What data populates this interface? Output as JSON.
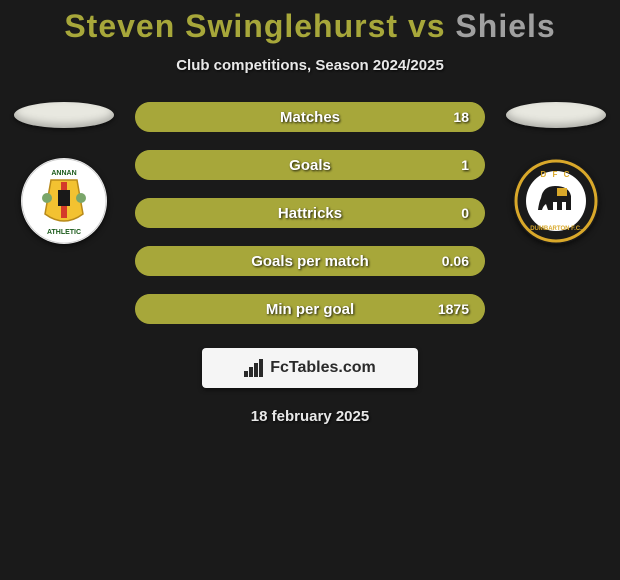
{
  "title": {
    "player1": "Steven Swinglehurst",
    "vs": " vs ",
    "player2": "Shiels",
    "player1_color": "#a7a73a",
    "player2_color": "#a0a0a0"
  },
  "subtitle": "Club competitions, Season 2024/2025",
  "left": {
    "oval_color": "#e8e8e0",
    "badge": {
      "bg": "#ffffff",
      "inner_bg": "#f3c231",
      "stripe": "#d43a2a",
      "center": "#191919",
      "text_color": "#1a5a1a",
      "top_text": "ANNAN",
      "bottom_text": "ATHLETIC"
    }
  },
  "right": {
    "oval_color": "#e8e8e0",
    "badge": {
      "bg": "#1a1a1a",
      "ring": "#d9a82a",
      "inner": "#ffffff",
      "accent": "#d9a82a",
      "top_text": "D F C"
    }
  },
  "stats": [
    {
      "label": "Matches",
      "value": "18",
      "fill_pct": 100,
      "fill_color": "#a7a73a",
      "bg_color": "#a7a73a"
    },
    {
      "label": "Goals",
      "value": "1",
      "fill_pct": 100,
      "fill_color": "#a7a73a",
      "bg_color": "#a7a73a"
    },
    {
      "label": "Hattricks",
      "value": "0",
      "fill_pct": 100,
      "fill_color": "#a7a73a",
      "bg_color": "#a7a73a"
    },
    {
      "label": "Goals per match",
      "value": "0.06",
      "fill_pct": 100,
      "fill_color": "#a7a73a",
      "bg_color": "#a7a73a"
    },
    {
      "label": "Min per goal",
      "value": "1875",
      "fill_pct": 100,
      "fill_color": "#a7a73a",
      "bg_color": "#a7a73a"
    }
  ],
  "brand": "FcTables.com",
  "date": "18 february 2025",
  "colors": {
    "page_bg": "#1a1a1a",
    "stat_text": "#ffffff"
  }
}
